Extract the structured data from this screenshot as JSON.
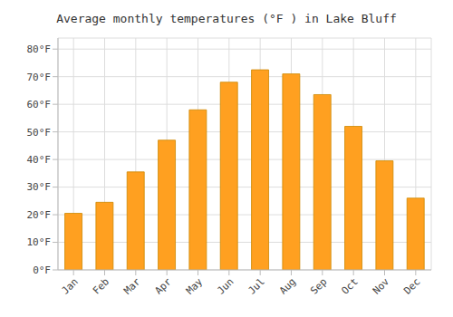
{
  "chart_data": {
    "type": "bar",
    "title": "Average monthly temperatures (°F ) in Lake Bluff",
    "categories": [
      "Jan",
      "Feb",
      "Mar",
      "Apr",
      "May",
      "Jun",
      "Jul",
      "Aug",
      "Sep",
      "Oct",
      "Nov",
      "Dec"
    ],
    "values": [
      20.5,
      24.5,
      35.5,
      47.0,
      58.0,
      68.0,
      72.5,
      71.0,
      63.5,
      52.0,
      39.5,
      26.0
    ],
    "color": "#FFA020",
    "ylim": [
      0,
      84
    ],
    "yticks": [
      {
        "value": 0,
        "label": "0°F"
      },
      {
        "value": 10,
        "label": "10°F"
      },
      {
        "value": 20,
        "label": "20°F"
      },
      {
        "value": 30,
        "label": "30°F"
      },
      {
        "value": 40,
        "label": "40°F"
      },
      {
        "value": 50,
        "label": "50°F"
      },
      {
        "value": 60,
        "label": "60°F"
      },
      {
        "value": 70,
        "label": "70°F"
      },
      {
        "value": 80,
        "label": "80°F"
      }
    ],
    "grid": true
  }
}
